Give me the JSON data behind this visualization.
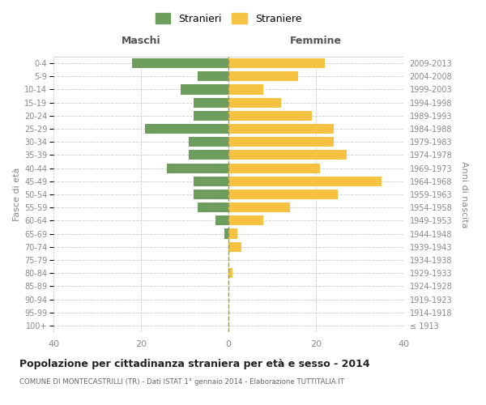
{
  "age_groups": [
    "100+",
    "95-99",
    "90-94",
    "85-89",
    "80-84",
    "75-79",
    "70-74",
    "65-69",
    "60-64",
    "55-59",
    "50-54",
    "45-49",
    "40-44",
    "35-39",
    "30-34",
    "25-29",
    "20-24",
    "15-19",
    "10-14",
    "5-9",
    "0-4"
  ],
  "birth_years": [
    "≤ 1913",
    "1914-1918",
    "1919-1923",
    "1924-1928",
    "1929-1933",
    "1934-1938",
    "1939-1943",
    "1944-1948",
    "1949-1953",
    "1954-1958",
    "1959-1963",
    "1964-1968",
    "1969-1973",
    "1974-1978",
    "1979-1983",
    "1984-1988",
    "1989-1993",
    "1994-1998",
    "1999-2003",
    "2004-2008",
    "2009-2013"
  ],
  "maschi": [
    0,
    0,
    0,
    0,
    0,
    0,
    0,
    1,
    3,
    7,
    8,
    8,
    14,
    9,
    9,
    19,
    8,
    8,
    11,
    7,
    22
  ],
  "femmine": [
    0,
    0,
    0,
    0,
    1,
    0,
    3,
    2,
    8,
    14,
    25,
    35,
    21,
    27,
    24,
    24,
    19,
    12,
    8,
    16,
    22
  ],
  "maschi_color": "#6d9e5e",
  "femmine_color": "#f5c242",
  "grid_color": "#cccccc",
  "center_line_color": "#999966",
  "title": "Popolazione per cittadinanza straniera per età e sesso - 2014",
  "subtitle": "COMUNE DI MONTECASTRILLI (TR) - Dati ISTAT 1° gennaio 2014 - Elaborazione TUTTITALIA.IT",
  "xlabel_left": "Maschi",
  "xlabel_right": "Femmine",
  "ylabel_left": "Fasce di età",
  "ylabel_right": "Anni di nascita",
  "legend_stranieri": "Stranieri",
  "legend_straniere": "Straniere",
  "xlim": 40,
  "tick_color": "#888888"
}
